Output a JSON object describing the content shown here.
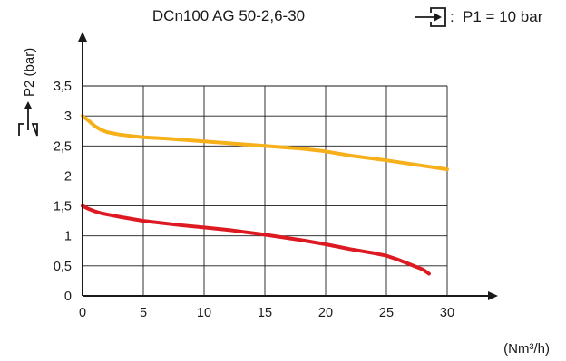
{
  "chart_data": {
    "type": "line",
    "title": "DCn100 AG 50-2,6-30",
    "inlet": {
      "label": "P1 = 10 bar",
      "sep": ":",
      "icon": "inlet-port-icon"
    },
    "ylabel": "P2 (bar)",
    "ylabel_icon": "outlet-port-icon",
    "xlabel": "(Nm³/h)",
    "xlim": [
      0,
      30
    ],
    "ylim": [
      0,
      3.5
    ],
    "grid": true,
    "x_ticks": [
      "0",
      "5",
      "10",
      "15",
      "20",
      "25",
      "30"
    ],
    "y_ticks": [
      "0",
      "0,5",
      "1",
      "1,5",
      "2",
      "2,5",
      "3",
      "3,5"
    ],
    "series": [
      {
        "color": "#f5b01a",
        "x": [
          0,
          0.5,
          1,
          1.5,
          2,
          3,
          4,
          5,
          7,
          10,
          13,
          15,
          18,
          20,
          22,
          25,
          28,
          30
        ],
        "y": [
          3.0,
          2.92,
          2.83,
          2.77,
          2.73,
          2.69,
          2.665,
          2.645,
          2.62,
          2.575,
          2.53,
          2.5,
          2.455,
          2.41,
          2.34,
          2.26,
          2.17,
          2.11
        ]
      },
      {
        "color": "#dd1a22",
        "x": [
          0,
          0.5,
          1,
          1.5,
          2,
          3,
          5,
          8,
          10,
          12,
          15,
          18,
          20,
          22,
          24,
          25,
          26,
          27,
          28,
          28.5
        ],
        "y": [
          1.5,
          1.45,
          1.41,
          1.38,
          1.36,
          1.32,
          1.25,
          1.18,
          1.14,
          1.1,
          1.02,
          0.93,
          0.86,
          0.78,
          0.71,
          0.67,
          0.6,
          0.52,
          0.44,
          0.37
        ]
      }
    ]
  }
}
